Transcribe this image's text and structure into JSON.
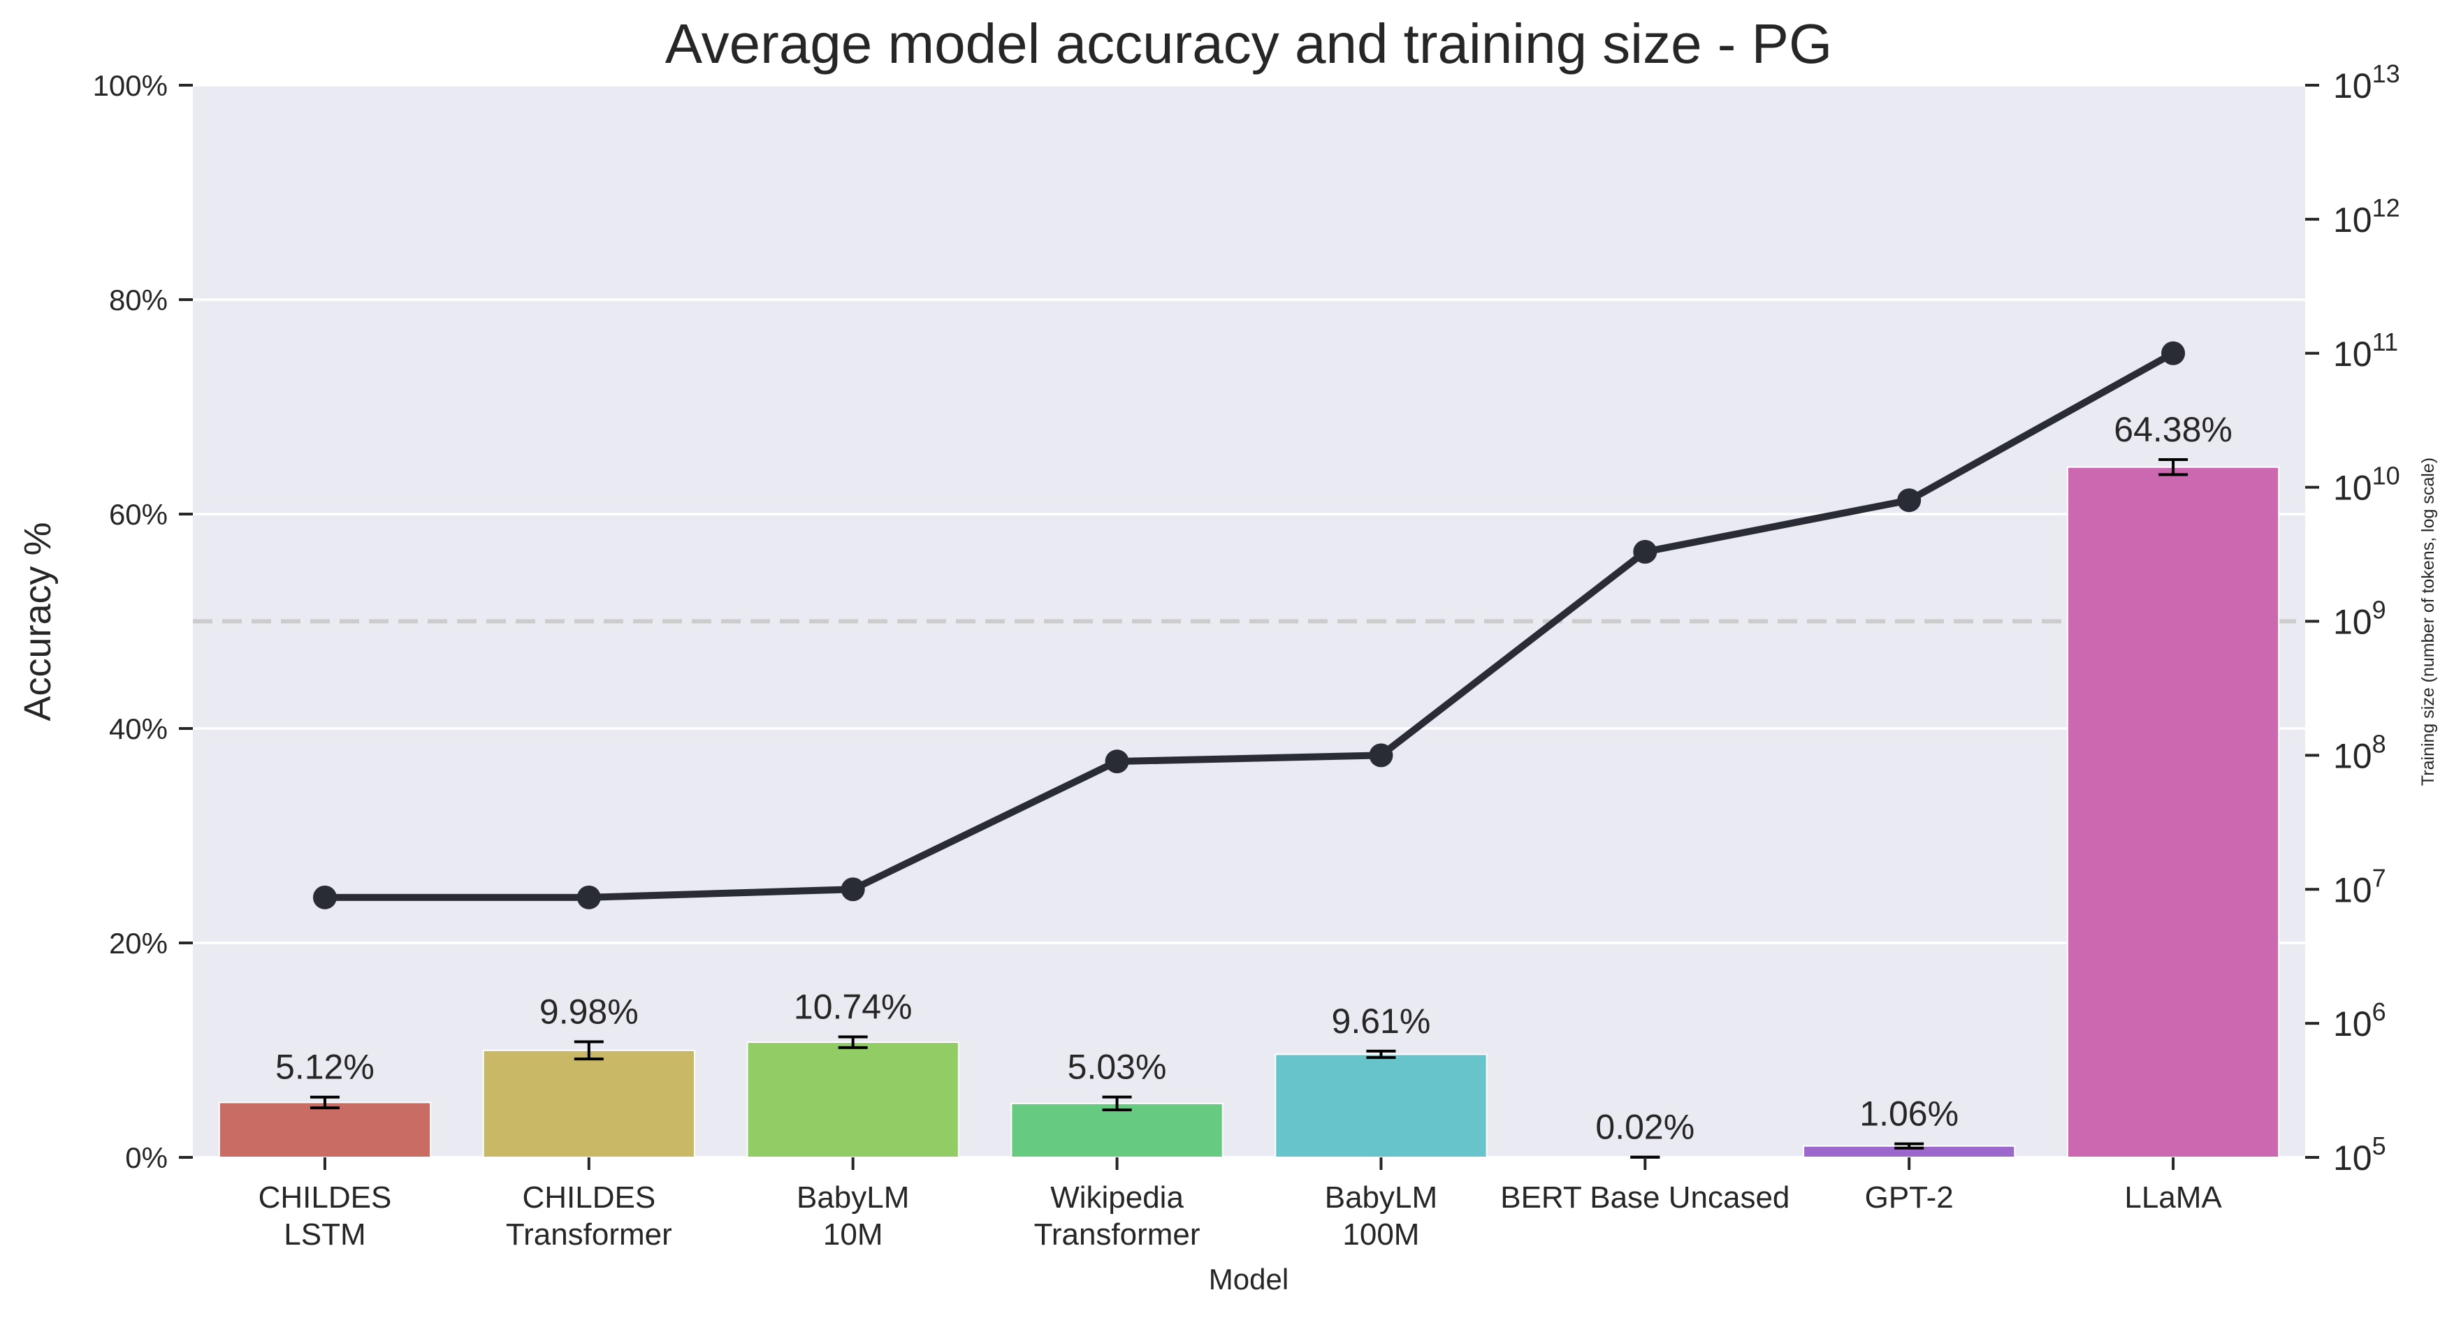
{
  "chart_data": {
    "type": "bar",
    "title": "Average model accuracy and training size - PG",
    "xlabel": "Model",
    "ylabel": "Accuracy %",
    "y2label": "Training size (number of tokens, log scale)",
    "categories": [
      [
        "CHILDES",
        "LSTM"
      ],
      [
        "CHILDES",
        "Transformer"
      ],
      [
        "BabyLM",
        "10M"
      ],
      [
        "Wikipedia",
        "Transformer"
      ],
      [
        "BabyLM",
        "100M"
      ],
      [
        "BERT Base Uncased"
      ],
      [
        "GPT-2"
      ],
      [
        "LLaMA"
      ]
    ],
    "series": [
      {
        "name": "Accuracy",
        "kind": "bar",
        "values": [
          5.12,
          9.98,
          10.74,
          5.03,
          9.61,
          0.02,
          1.06,
          64.38
        ],
        "labels": [
          "5.12%",
          "9.98%",
          "10.74%",
          "5.03%",
          "9.61%",
          "0.02%",
          "1.06%",
          "64.38%"
        ],
        "errors": [
          0.5,
          0.8,
          0.5,
          0.6,
          0.3,
          0.0,
          0.2,
          0.7
        ],
        "colors": [
          "#c96d64",
          "#c9b866",
          "#91cd64",
          "#66cb80",
          "#67c4ca",
          "#6b80cc",
          "#9c68cc",
          "#cc68b0"
        ]
      },
      {
        "name": "Training size",
        "kind": "line",
        "axis": "right-log",
        "values": [
          8700000,
          8700000,
          10000000,
          90000000,
          100000000,
          3300000000,
          8000000000,
          100000000000
        ],
        "color": "#2a2c35"
      }
    ],
    "ylim": [
      0,
      100
    ],
    "yticks": [
      0,
      20,
      40,
      60,
      80,
      100
    ],
    "ytick_labels": [
      "0%",
      "20%",
      "40%",
      "60%",
      "80%",
      "100%"
    ],
    "y2lim_exp": [
      5,
      13
    ],
    "y2ticks_exp": [
      5,
      6,
      7,
      8,
      9,
      10,
      11,
      12,
      13
    ],
    "y2tick_base": "10",
    "reference_line": {
      "value": 50,
      "style": "dashed"
    },
    "grid": true,
    "background": "#eaeaf2"
  }
}
